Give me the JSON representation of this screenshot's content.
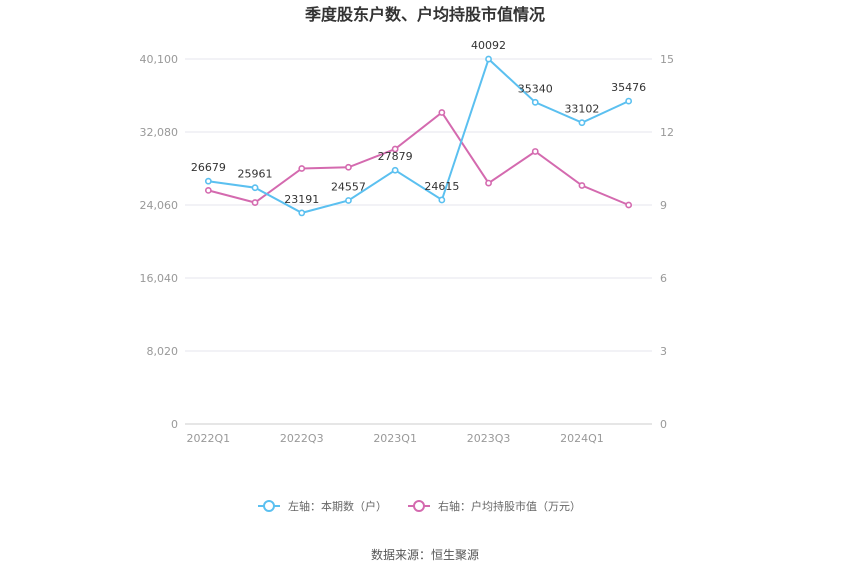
{
  "chart_data": {
    "type": "line",
    "title": "季度股东户数、户均持股市值情况",
    "categories": [
      "2022Q1",
      "2022Q2",
      "2022Q3",
      "2022Q4",
      "2023Q1",
      "2023Q2",
      "2023Q3",
      "2023Q4",
      "2024Q1",
      "2024Q2"
    ],
    "x_tick_labels": [
      "2022Q1",
      "2022Q3",
      "2023Q1",
      "2023Q3",
      "2024Q1"
    ],
    "left_axis": {
      "min": 0,
      "max": 40100,
      "ticks": [
        "0",
        "8,020",
        "16,040",
        "24,060",
        "32,080",
        "40,100"
      ]
    },
    "right_axis": {
      "min": 0,
      "max": 15,
      "ticks": [
        "0",
        "3",
        "6",
        "9",
        "12",
        "15"
      ]
    },
    "grid": true,
    "legend_position": "bottom",
    "series": [
      {
        "name": "左轴：本期数（户）",
        "axis": "left",
        "color": "#5bc0f0",
        "values": [
          26679,
          25961,
          23191,
          24557,
          27879,
          24615,
          40092,
          35340,
          33102,
          35476
        ],
        "labels": [
          "26679",
          "25961",
          "23191",
          "24557",
          "27879",
          "24615",
          "40092",
          "35340",
          "33102",
          "35476"
        ]
      },
      {
        "name": "右轴：户均持股市值（万元）",
        "axis": "right",
        "color": "#d46aaf",
        "values": [
          9.6,
          9.1,
          10.5,
          10.55,
          11.3,
          12.8,
          9.9,
          11.2,
          9.8,
          9.0
        ]
      }
    ],
    "source": "数据来源：恒生聚源"
  }
}
